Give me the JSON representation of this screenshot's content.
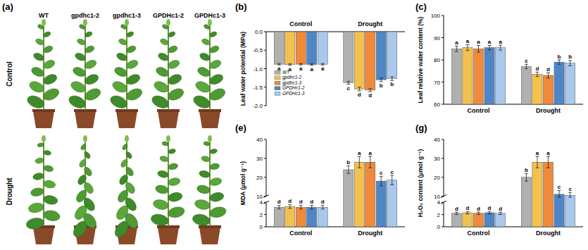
{
  "panel_a": {
    "label": "(a)",
    "columns": [
      "WT",
      "gpdhc1-2",
      "gpdhc1-3",
      "GPDHc1-2",
      "GPDHc1-3"
    ],
    "rows": [
      "Control",
      "Drought"
    ]
  },
  "chart_data": [
    {
      "type": "bar",
      "title": "(b)",
      "y_label": "Leaf water potential (MPa)",
      "categories": [
        "Control",
        "Drought"
      ],
      "ylim": [
        -2,
        0
      ],
      "yticks": [
        {
          "value": 0,
          "label": "0.0"
        },
        -0.5,
        {
          "value": -1,
          "label": "-1.0"
        },
        -1.5,
        {
          "value": -2,
          "label": "-2.0"
        }
      ],
      "legend": "lower-left",
      "series": [
        {
          "name": "WT",
          "color": "#b0b0b0",
          "values": [
            -0.88,
            -1.38
          ],
          "errors": [
            0.02,
            0.04
          ],
          "annotations": [
            "a",
            "c"
          ]
        },
        {
          "name": "gpdhc1-2",
          "color": "#f2c14e",
          "values": [
            -0.89,
            -1.55
          ],
          "errors": [
            0.02,
            0.05
          ],
          "annotations": [
            "a",
            "d"
          ]
        },
        {
          "name": "gpdhc1-3",
          "color": "#f08a3a",
          "values": [
            -0.88,
            -1.58
          ],
          "errors": [
            0.02,
            0.04
          ],
          "annotations": [
            "a",
            "d"
          ]
        },
        {
          "name": "GPDHc1-2",
          "color": "#4f86c6",
          "values": [
            -0.89,
            -1.3
          ],
          "errors": [
            0.02,
            0.05
          ],
          "annotations": [
            "a",
            "b"
          ]
        },
        {
          "name": "GPDHc1-3",
          "color": "#a9c8ec",
          "values": [
            -0.88,
            -1.27
          ],
          "errors": [
            0.02,
            0.05
          ],
          "annotations": [
            "a",
            "b"
          ]
        }
      ]
    },
    {
      "type": "bar",
      "title": "(c)",
      "y_label": "Leaf relative water content (%)",
      "categories": [
        "Control",
        "Drought"
      ],
      "ylim": [
        60,
        100
      ],
      "yticks": [
        60,
        70,
        80,
        90,
        100
      ],
      "series": [
        {
          "name": "WT",
          "color": "#b0b0b0",
          "values": [
            85,
            77
          ],
          "errors": [
            1.2,
            1
          ],
          "annotations": [
            "a",
            "c"
          ]
        },
        {
          "name": "gpdhc1-2",
          "color": "#f2c14e",
          "values": [
            85.5,
            73.5
          ],
          "errors": [
            1.3,
            1
          ],
          "annotations": [
            "a",
            "d"
          ]
        },
        {
          "name": "gpdhc1-3",
          "color": "#f08a3a",
          "values": [
            85,
            73
          ],
          "errors": [
            1.5,
            1.2
          ],
          "annotations": [
            "a",
            "d"
          ]
        },
        {
          "name": "GPDHc1-2",
          "color": "#4f86c6",
          "values": [
            85.5,
            79
          ],
          "errors": [
            1,
            1
          ],
          "annotations": [
            "a",
            "b"
          ]
        },
        {
          "name": "GPDHc1-3",
          "color": "#a9c8ec",
          "values": [
            85.5,
            78.5
          ],
          "errors": [
            1.1,
            1.2
          ],
          "annotations": [
            "a",
            "b"
          ]
        }
      ]
    },
    {
      "type": "bar",
      "title": "(e)",
      "y_label": "MDA (μmol g⁻¹)",
      "categories": [
        "Control",
        "Drought"
      ],
      "ylim": [
        0,
        40
      ],
      "ybreak": [
        4,
        10
      ],
      "yticks": [
        0,
        2,
        4,
        10,
        20,
        30,
        40
      ],
      "series": [
        {
          "name": "WT",
          "color": "#b0b0b0",
          "values": [
            3.2,
            24
          ],
          "errors": [
            0.3,
            2
          ],
          "annotations": [
            "d",
            "b"
          ]
        },
        {
          "name": "gpdhc1-2",
          "color": "#f2c14e",
          "values": [
            3.3,
            28
          ],
          "errors": [
            0.3,
            3
          ],
          "annotations": [
            "d",
            "a"
          ]
        },
        {
          "name": "gpdhc1-3",
          "color": "#f08a3a",
          "values": [
            3.2,
            28
          ],
          "errors": [
            0.3,
            3
          ],
          "annotations": [
            "d",
            "a"
          ]
        },
        {
          "name": "GPDHc1-2",
          "color": "#4f86c6",
          "values": [
            3.2,
            18
          ],
          "errors": [
            0.3,
            2.5
          ],
          "annotations": [
            "d",
            "c"
          ]
        },
        {
          "name": "GPDHc1-3",
          "color": "#a9c8ec",
          "values": [
            3.2,
            18.5
          ],
          "errors": [
            0.3,
            2.5
          ],
          "annotations": [
            "d",
            "c"
          ]
        }
      ]
    },
    {
      "type": "bar",
      "title": "(g)",
      "y_label": "H₂O₂ content (μmol g⁻¹)",
      "categories": [
        "Control",
        "Drought"
      ],
      "ylim": [
        0,
        40
      ],
      "ybreak": [
        4,
        10
      ],
      "yticks": [
        0,
        2,
        4,
        10,
        20,
        30,
        40
      ],
      "series": [
        {
          "name": "WT",
          "color": "#b0b0b0",
          "values": [
            2.2,
            20
          ],
          "errors": [
            0.2,
            2
          ],
          "annotations": [
            "d",
            "b"
          ]
        },
        {
          "name": "gpdhc1-2",
          "color": "#f2c14e",
          "values": [
            2.3,
            28
          ],
          "errors": [
            0.2,
            3
          ],
          "annotations": [
            "d",
            "a"
          ]
        },
        {
          "name": "gpdhc1-3",
          "color": "#f08a3a",
          "values": [
            2.2,
            28
          ],
          "errors": [
            0.2,
            3
          ],
          "annotations": [
            "d",
            "a"
          ]
        },
        {
          "name": "GPDHc1-2",
          "color": "#4f86c6",
          "values": [
            2.3,
            11
          ],
          "errors": [
            0.2,
            2
          ],
          "annotations": [
            "d",
            "c"
          ]
        },
        {
          "name": "GPDHc1-3",
          "color": "#a9c8ec",
          "values": [
            2.2,
            10.5
          ],
          "errors": [
            0.2,
            1.5
          ],
          "annotations": [
            "d",
            "c"
          ]
        }
      ]
    }
  ]
}
